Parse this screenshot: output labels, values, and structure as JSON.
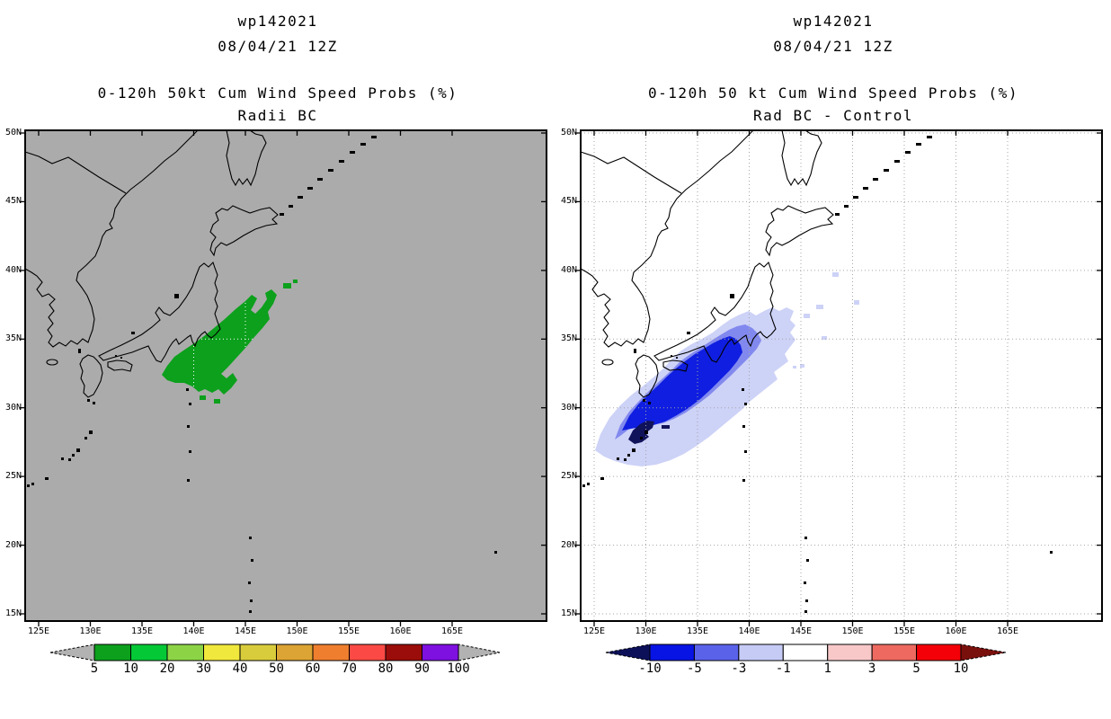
{
  "panels": [
    {
      "title_lines": [
        "wp142021",
        "08/04/21 12Z"
      ],
      "subtitle_lines": [
        "0-120h 50kt Cum Wind Speed Probs (%)",
        "Radii BC"
      ],
      "map": {
        "background": "#ababab",
        "grid_color": "#ffffff",
        "x_ticks": [
          "125E",
          "130E",
          "135E",
          "140E",
          "145E",
          "150E",
          "155E",
          "160E",
          "165E"
        ],
        "y_ticks": [
          "50N",
          "45N",
          "40N",
          "35N",
          "30N",
          "25N",
          "20N",
          "15N"
        ]
      },
      "colorbar": {
        "values": [
          "5",
          "10",
          "20",
          "30",
          "40",
          "50",
          "60",
          "70",
          "80",
          "90",
          "100"
        ],
        "colors": [
          "#0ca01c",
          "#04c836",
          "#8cd446",
          "#f0e83c",
          "#d8cc3c",
          "#dca434",
          "#ef7f2f",
          "#fb4a45",
          "#9b0d0a",
          "#7e10e0"
        ],
        "arrow_left_color": "#b2b2b2",
        "arrow_right_color": "#b2b2b2"
      }
    },
    {
      "title_lines": [
        "wp142021",
        "08/04/21 12Z"
      ],
      "subtitle_lines": [
        "0-120h 50 kt Cum Wind Speed Probs (%)",
        "Rad BC - Control"
      ],
      "map": {
        "background": "#ffffff",
        "grid_color": "#a6a6a6",
        "x_ticks": [
          "125E",
          "130E",
          "135E",
          "140E",
          "145E",
          "150E",
          "155E",
          "160E",
          "165E"
        ],
        "y_ticks": [
          "50N",
          "45N",
          "40N",
          "35N",
          "30N",
          "25N",
          "20N",
          "15N"
        ]
      },
      "colorbar": {
        "values": [
          "-10",
          "-5",
          "-3",
          "-1",
          "1",
          "3",
          "5",
          "10"
        ],
        "colors": [
          "#0814e4",
          "#5a62ea",
          "#c6cbf6",
          "#ffffff",
          "#f8c8c8",
          "#ee6a60",
          "#f40008"
        ],
        "arrow_left_color": "#0c1058",
        "arrow_right_color": "#7a100c"
      }
    }
  ],
  "chart_data": [
    {
      "type": "heatmap",
      "title": "wp142021 08/04/21 12Z",
      "subtitle": "0-120h 50kt Cum Wind Speed Probs (%) - Radii BC",
      "x_ticks": [
        "125E",
        "130E",
        "135E",
        "140E",
        "145E",
        "150E",
        "155E",
        "160E",
        "165E"
      ],
      "y_ticks": [
        "15N",
        "20N",
        "25N",
        "30N",
        "35N",
        "40N",
        "45N",
        "50N"
      ],
      "xlim": [
        "124E",
        "174E"
      ],
      "ylim": [
        "15N",
        "50N"
      ],
      "legend_position": "bottom",
      "legend_values": [
        5,
        10,
        20,
        30,
        40,
        50,
        60,
        70,
        80,
        90,
        100
      ],
      "legend_colors": [
        "#0ca01c",
        "#04c836",
        "#8cd446",
        "#f0e83c",
        "#d8cc3c",
        "#dca434",
        "#ef7f2f",
        "#fb4a45",
        "#9b0d0a",
        "#7e10e0"
      ],
      "regions": [
        {
          "level": "5-10%",
          "color": "#0ca01c",
          "description": "Single filled probability contour southeast of central Honshu (offshore Tokai/Kanto), roughly 136E-148E, 30.5N-39N, elongated SW-NE along the coast"
        }
      ],
      "background": "#ababab",
      "grid": "5-degree graticule, white dotted, visible only over shaded contour"
    },
    {
      "type": "heatmap",
      "title": "wp142021 08/04/21 12Z",
      "subtitle": "0-120h 50 kt Cum Wind Speed Probs (%) - Rad BC - Control",
      "x_ticks": [
        "125E",
        "130E",
        "135E",
        "140E",
        "145E",
        "150E",
        "155E",
        "160E",
        "165E"
      ],
      "y_ticks": [
        "15N",
        "20N",
        "25N",
        "30N",
        "35N",
        "40N",
        "45N",
        "50N"
      ],
      "xlim": [
        "124E",
        "174E"
      ],
      "ylim": [
        "15N",
        "50N"
      ],
      "legend_position": "bottom",
      "legend_values": [
        -10,
        -5,
        -3,
        -1,
        1,
        3,
        5,
        10
      ],
      "legend_colors": [
        "#0814e4",
        "#5a62ea",
        "#c6cbf6",
        "#ffffff",
        "#f8c8c8",
        "#ee6a60",
        "#f40008"
      ],
      "regions": [
        {
          "level": "-1 to -3",
          "color": "#cdd2f7",
          "description": "Outer negative difference lobe south/southwest of Japan, ~126E-146E, 25N-37N, elongated SW-NE, with small detached specks northeast"
        },
        {
          "level": "-3 to -5",
          "color": "#8289ee",
          "description": "Middle ring ~127E-141E, 26N-35.5N"
        },
        {
          "level": "-5 to -10",
          "color": "#0f1ee0",
          "description": "Large core ~127.5E-140E, 27N-34.5N south of Shikoku/Kyushu"
        },
        {
          "level": "< -10",
          "color": "#10125a",
          "description": "Small innermost core near the Amami Islands ~129E-131E, 27.5N-29.5N"
        }
      ],
      "background": "#ffffff",
      "grid": "5-degree graticule, gray dotted"
    }
  ]
}
